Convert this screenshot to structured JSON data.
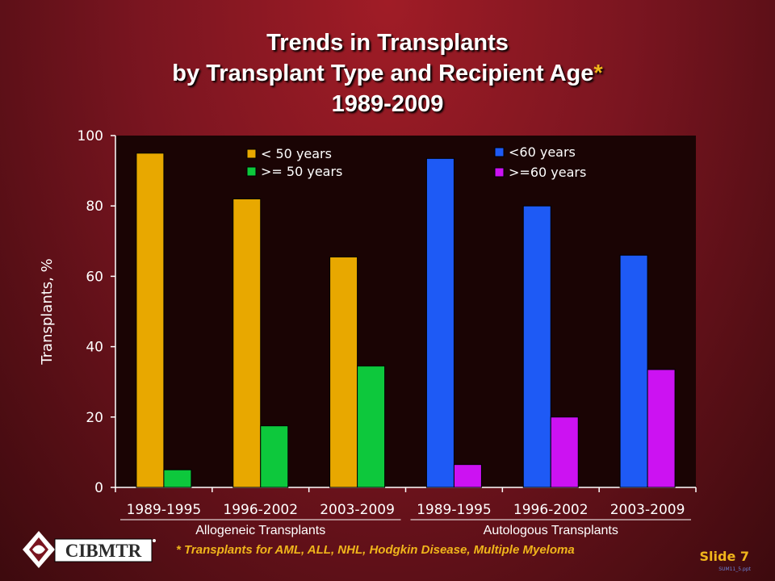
{
  "title": {
    "line1": "Trends in Transplants",
    "line2": "by Transplant Type and Recipient Age",
    "star": "*",
    "line3": "1989-2009"
  },
  "footnote": "* Transplants for AML, ALL, NHL, Hodgkin Disease, Multiple Myeloma",
  "logo_text": "CIBMTR",
  "slide_label": "Slide 7",
  "file_label": "SUM11_5.ppt",
  "chart_data": {
    "type": "bar",
    "ylabel": "Transplants, %",
    "ylim": [
      0,
      100
    ],
    "yticks": [
      0,
      20,
      40,
      60,
      80,
      100
    ],
    "categories": [
      "1989-1995",
      "1996-2002",
      "2003-2009",
      "1989-1995",
      "1996-2002",
      "2003-2009"
    ],
    "groups": [
      {
        "label": "Allogeneic Transplants",
        "category_indices": [
          0,
          1,
          2
        ]
      },
      {
        "label": "Autologous Transplants",
        "category_indices": [
          3,
          4,
          5
        ]
      }
    ],
    "series": [
      {
        "name": "< 50 years",
        "color": "#e8a800",
        "values": [
          95,
          82,
          65.5,
          null,
          null,
          null
        ]
      },
      {
        "name": ">= 50 years",
        "color": "#0dc83c",
        "values": [
          5,
          17.5,
          34.5,
          null,
          null,
          null
        ]
      },
      {
        "name": "<60 years",
        "color": "#1e5af5",
        "values": [
          null,
          null,
          null,
          93.5,
          80,
          66
        ]
      },
      {
        "name": ">=60 years",
        "color": "#cc12f2",
        "values": [
          null,
          null,
          null,
          6.5,
          20,
          33.5
        ]
      }
    ],
    "legend_placement": "top",
    "grid": false
  }
}
